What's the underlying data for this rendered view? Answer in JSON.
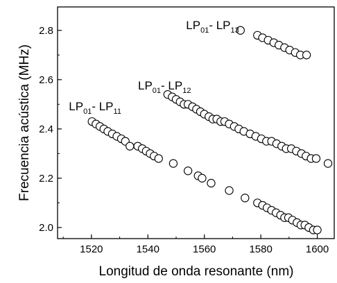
{
  "chart_data": {
    "type": "scatter",
    "xlabel": "Longitud de onda resonante (nm)",
    "ylabel": "Frecuencia acústica (MHz)",
    "xlim": [
      1508,
      1606
    ],
    "ylim": [
      1.955,
      2.895
    ],
    "xticks": [
      "1520",
      "1540",
      "1560",
      "1580",
      "1600"
    ],
    "yticks": [
      "2.0",
      "2.2",
      "2.4",
      "2.6",
      "2.8"
    ],
    "grid": false,
    "marker": "open-circle",
    "series": [
      {
        "label": {
          "main1": "LP",
          "sub1": "01",
          "sep": "- LP",
          "sub2": "11",
          "x": 1512,
          "y": 2.475
        },
        "x": [
          1520.2,
          1521.6,
          1523.0,
          1524.4,
          1525.8,
          1527.4,
          1529.0,
          1530.6,
          1532.0,
          1533.6,
          1536.4,
          1538.0,
          1539.4,
          1540.8,
          1542.2,
          1543.8,
          1549.0,
          1554.2,
          1557.8,
          1559.2,
          1562.4,
          1568.8,
          1574.4,
          1578.8,
          1580.6,
          1582.2,
          1583.8,
          1585.4,
          1587.0,
          1588.4,
          1589.8,
          1591.2,
          1592.8,
          1594.2,
          1595.6,
          1597.0,
          1598.6,
          1600.0
        ],
        "y": [
          2.43,
          2.42,
          2.41,
          2.4,
          2.39,
          2.38,
          2.37,
          2.36,
          2.35,
          2.33,
          2.33,
          2.32,
          2.31,
          2.3,
          2.29,
          2.28,
          2.26,
          2.23,
          2.21,
          2.2,
          2.18,
          2.15,
          2.12,
          2.1,
          2.09,
          2.08,
          2.07,
          2.06,
          2.05,
          2.04,
          2.04,
          2.03,
          2.02,
          2.01,
          2.01,
          2.0,
          1.99,
          1.99
        ]
      },
      {
        "label": {
          "main1": "LP",
          "sub1": "01",
          "sep": "- LP",
          "sub2": "12",
          "x": 1536.5,
          "y": 2.56
        },
        "x": [
          1547.0,
          1548.6,
          1550.0,
          1551.4,
          1552.8,
          1554.2,
          1555.8,
          1557.2,
          1558.6,
          1560.0,
          1561.6,
          1563.0,
          1564.4,
          1565.8,
          1567.2,
          1568.8,
          1570.6,
          1572.2,
          1574.0,
          1576.2,
          1578.2,
          1580.2,
          1582.0,
          1583.8,
          1585.6,
          1587.4,
          1589.0,
          1590.8,
          1592.6,
          1594.4,
          1596.0,
          1597.8,
          1599.6,
          1603.8
        ],
        "y": [
          2.54,
          2.53,
          2.52,
          2.51,
          2.5,
          2.5,
          2.49,
          2.48,
          2.47,
          2.46,
          2.45,
          2.44,
          2.44,
          2.43,
          2.43,
          2.42,
          2.41,
          2.4,
          2.39,
          2.38,
          2.37,
          2.36,
          2.35,
          2.35,
          2.34,
          2.33,
          2.32,
          2.32,
          2.31,
          2.3,
          2.29,
          2.28,
          2.28,
          2.26
        ]
      },
      {
        "label": {
          "main1": "LP",
          "sub1": "01",
          "sep": "- LP",
          "sub2": "13",
          "x": 1553.5,
          "y": 2.805
        },
        "x": [
          1572.8,
          1578.8,
          1580.6,
          1582.6,
          1584.6,
          1586.4,
          1588.4,
          1590.2,
          1592.2,
          1594.0,
          1596.2
        ],
        "y": [
          2.8,
          2.78,
          2.77,
          2.76,
          2.75,
          2.74,
          2.73,
          2.72,
          2.71,
          2.7,
          2.7
        ]
      }
    ]
  }
}
